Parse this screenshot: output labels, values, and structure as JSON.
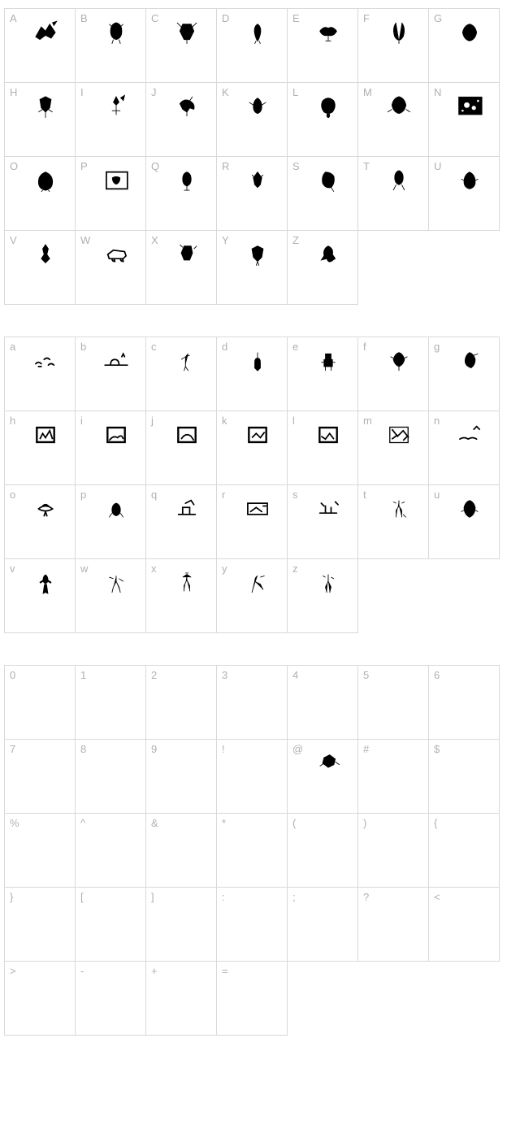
{
  "grids": [
    {
      "id": "uppercase",
      "cells": [
        {
          "label": "A",
          "glyph": "alien-1"
        },
        {
          "label": "B",
          "glyph": "alien-2"
        },
        {
          "label": "C",
          "glyph": "alien-3"
        },
        {
          "label": "D",
          "glyph": "alien-4"
        },
        {
          "label": "E",
          "glyph": "alien-5"
        },
        {
          "label": "F",
          "glyph": "alien-6"
        },
        {
          "label": "G",
          "glyph": "alien-7"
        },
        {
          "label": "H",
          "glyph": "alien-8"
        },
        {
          "label": "I",
          "glyph": "alien-9"
        },
        {
          "label": "J",
          "glyph": "alien-10"
        },
        {
          "label": "K",
          "glyph": "alien-11"
        },
        {
          "label": "L",
          "glyph": "alien-12"
        },
        {
          "label": "M",
          "glyph": "alien-13"
        },
        {
          "label": "N",
          "glyph": "space-box"
        },
        {
          "label": "O",
          "glyph": "alien-14"
        },
        {
          "label": "P",
          "glyph": "framed"
        },
        {
          "label": "Q",
          "glyph": "alien-15"
        },
        {
          "label": "R",
          "glyph": "alien-16"
        },
        {
          "label": "S",
          "glyph": "alien-17"
        },
        {
          "label": "T",
          "glyph": "alien-18"
        },
        {
          "label": "U",
          "glyph": "alien-19"
        },
        {
          "label": "V",
          "glyph": "alien-20"
        },
        {
          "label": "W",
          "glyph": "vehicle"
        },
        {
          "label": "X",
          "glyph": "alien-21"
        },
        {
          "label": "Y",
          "glyph": "alien-22"
        },
        {
          "label": "Z",
          "glyph": "alien-23"
        }
      ]
    },
    {
      "id": "lowercase",
      "cells": [
        {
          "label": "a",
          "glyph": "scene-1"
        },
        {
          "label": "b",
          "glyph": "scene-2"
        },
        {
          "label": "c",
          "glyph": "figure-1"
        },
        {
          "label": "d",
          "glyph": "figure-2"
        },
        {
          "label": "e",
          "glyph": "robot"
        },
        {
          "label": "f",
          "glyph": "figure-3"
        },
        {
          "label": "g",
          "glyph": "figure-4"
        },
        {
          "label": "h",
          "glyph": "panel-1"
        },
        {
          "label": "i",
          "glyph": "panel-2"
        },
        {
          "label": "j",
          "glyph": "panel-3"
        },
        {
          "label": "k",
          "glyph": "panel-4"
        },
        {
          "label": "l",
          "glyph": "panel-5"
        },
        {
          "label": "m",
          "glyph": "panel-6"
        },
        {
          "label": "n",
          "glyph": "scene-3"
        },
        {
          "label": "o",
          "glyph": "ufo"
        },
        {
          "label": "p",
          "glyph": "creature-1"
        },
        {
          "label": "q",
          "glyph": "scene-4"
        },
        {
          "label": "r",
          "glyph": "scene-5"
        },
        {
          "label": "s",
          "glyph": "scene-6"
        },
        {
          "label": "t",
          "glyph": "figure-5"
        },
        {
          "label": "u",
          "glyph": "figure-6"
        },
        {
          "label": "v",
          "glyph": "silhouette"
        },
        {
          "label": "w",
          "glyph": "figure-7"
        },
        {
          "label": "x",
          "glyph": "figure-8"
        },
        {
          "label": "y",
          "glyph": "figure-9"
        },
        {
          "label": "z",
          "glyph": "figure-10"
        }
      ]
    },
    {
      "id": "symbols",
      "cells": [
        {
          "label": "0",
          "glyph": ""
        },
        {
          "label": "1",
          "glyph": ""
        },
        {
          "label": "2",
          "glyph": ""
        },
        {
          "label": "3",
          "glyph": ""
        },
        {
          "label": "4",
          "glyph": ""
        },
        {
          "label": "5",
          "glyph": ""
        },
        {
          "label": "6",
          "glyph": ""
        },
        {
          "label": "7",
          "glyph": ""
        },
        {
          "label": "8",
          "glyph": ""
        },
        {
          "label": "9",
          "glyph": ""
        },
        {
          "label": "!",
          "glyph": ""
        },
        {
          "label": "@",
          "glyph": "at-glyph"
        },
        {
          "label": "#",
          "glyph": ""
        },
        {
          "label": "$",
          "glyph": ""
        },
        {
          "label": "%",
          "glyph": ""
        },
        {
          "label": "^",
          "glyph": ""
        },
        {
          "label": "&",
          "glyph": ""
        },
        {
          "label": "*",
          "glyph": ""
        },
        {
          "label": "(",
          "glyph": ""
        },
        {
          "label": ")",
          "glyph": ""
        },
        {
          "label": "{",
          "glyph": ""
        },
        {
          "label": "}",
          "glyph": ""
        },
        {
          "label": "[",
          "glyph": ""
        },
        {
          "label": "]",
          "glyph": ""
        },
        {
          "label": ":",
          "glyph": ""
        },
        {
          "label": ";",
          "glyph": ""
        },
        {
          "label": "?",
          "glyph": ""
        },
        {
          "label": "<",
          "glyph": ""
        },
        {
          "label": ">",
          "glyph": ""
        },
        {
          "label": "-",
          "glyph": ""
        },
        {
          "label": "+",
          "glyph": ""
        },
        {
          "label": "=",
          "glyph": ""
        }
      ]
    }
  ],
  "colors": {
    "border": "#d9d9d9",
    "label": "#b0b0b0",
    "glyph": "#000000",
    "background": "#ffffff"
  },
  "cell_size": {
    "width": 88,
    "height": 92
  }
}
